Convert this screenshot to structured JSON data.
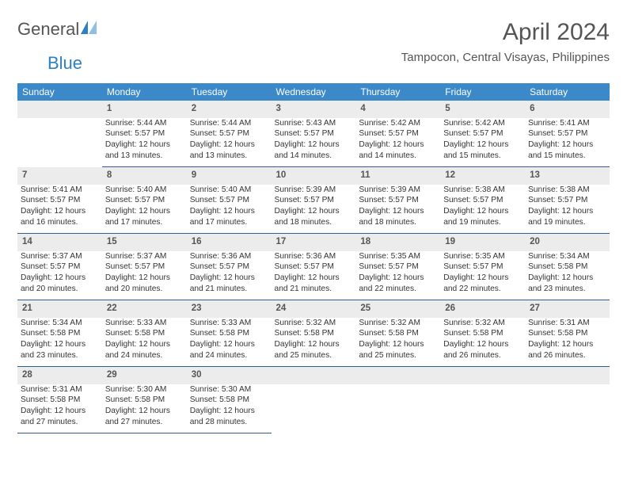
{
  "logo": {
    "general": "General",
    "blue": "Blue"
  },
  "header": {
    "title": "April 2024",
    "subtitle": "Tampocon, Central Visayas, Philippines"
  },
  "colors": {
    "header_bg": "#3b89c9",
    "header_fg": "#ffffff",
    "daynum_bg": "#ececec",
    "daynum_fg": "#555555",
    "cell_fg": "#333333",
    "row_border": "#2f5f8f",
    "title_fg": "#555555",
    "logo_blue": "#2f7fc3",
    "logo_gray": "#555555"
  },
  "typography": {
    "title_fontsize": 30,
    "subtitle_fontsize": 15,
    "weekday_fontsize": 12,
    "daynum_fontsize": 11.5,
    "cell_fontsize": 10.2
  },
  "weekdays": [
    "Sunday",
    "Monday",
    "Tuesday",
    "Wednesday",
    "Thursday",
    "Friday",
    "Saturday"
  ],
  "weeks": [
    [
      null,
      {
        "n": "1",
        "sr": "5:44 AM",
        "ss": "5:57 PM",
        "dl": "12 hours and 13 minutes."
      },
      {
        "n": "2",
        "sr": "5:44 AM",
        "ss": "5:57 PM",
        "dl": "12 hours and 13 minutes."
      },
      {
        "n": "3",
        "sr": "5:43 AM",
        "ss": "5:57 PM",
        "dl": "12 hours and 14 minutes."
      },
      {
        "n": "4",
        "sr": "5:42 AM",
        "ss": "5:57 PM",
        "dl": "12 hours and 14 minutes."
      },
      {
        "n": "5",
        "sr": "5:42 AM",
        "ss": "5:57 PM",
        "dl": "12 hours and 15 minutes."
      },
      {
        "n": "6",
        "sr": "5:41 AM",
        "ss": "5:57 PM",
        "dl": "12 hours and 15 minutes."
      }
    ],
    [
      {
        "n": "7",
        "sr": "5:41 AM",
        "ss": "5:57 PM",
        "dl": "12 hours and 16 minutes."
      },
      {
        "n": "8",
        "sr": "5:40 AM",
        "ss": "5:57 PM",
        "dl": "12 hours and 17 minutes."
      },
      {
        "n": "9",
        "sr": "5:40 AM",
        "ss": "5:57 PM",
        "dl": "12 hours and 17 minutes."
      },
      {
        "n": "10",
        "sr": "5:39 AM",
        "ss": "5:57 PM",
        "dl": "12 hours and 18 minutes."
      },
      {
        "n": "11",
        "sr": "5:39 AM",
        "ss": "5:57 PM",
        "dl": "12 hours and 18 minutes."
      },
      {
        "n": "12",
        "sr": "5:38 AM",
        "ss": "5:57 PM",
        "dl": "12 hours and 19 minutes."
      },
      {
        "n": "13",
        "sr": "5:38 AM",
        "ss": "5:57 PM",
        "dl": "12 hours and 19 minutes."
      }
    ],
    [
      {
        "n": "14",
        "sr": "5:37 AM",
        "ss": "5:57 PM",
        "dl": "12 hours and 20 minutes."
      },
      {
        "n": "15",
        "sr": "5:37 AM",
        "ss": "5:57 PM",
        "dl": "12 hours and 20 minutes."
      },
      {
        "n": "16",
        "sr": "5:36 AM",
        "ss": "5:57 PM",
        "dl": "12 hours and 21 minutes."
      },
      {
        "n": "17",
        "sr": "5:36 AM",
        "ss": "5:57 PM",
        "dl": "12 hours and 21 minutes."
      },
      {
        "n": "18",
        "sr": "5:35 AM",
        "ss": "5:57 PM",
        "dl": "12 hours and 22 minutes."
      },
      {
        "n": "19",
        "sr": "5:35 AM",
        "ss": "5:57 PM",
        "dl": "12 hours and 22 minutes."
      },
      {
        "n": "20",
        "sr": "5:34 AM",
        "ss": "5:58 PM",
        "dl": "12 hours and 23 minutes."
      }
    ],
    [
      {
        "n": "21",
        "sr": "5:34 AM",
        "ss": "5:58 PM",
        "dl": "12 hours and 23 minutes."
      },
      {
        "n": "22",
        "sr": "5:33 AM",
        "ss": "5:58 PM",
        "dl": "12 hours and 24 minutes."
      },
      {
        "n": "23",
        "sr": "5:33 AM",
        "ss": "5:58 PM",
        "dl": "12 hours and 24 minutes."
      },
      {
        "n": "24",
        "sr": "5:32 AM",
        "ss": "5:58 PM",
        "dl": "12 hours and 25 minutes."
      },
      {
        "n": "25",
        "sr": "5:32 AM",
        "ss": "5:58 PM",
        "dl": "12 hours and 25 minutes."
      },
      {
        "n": "26",
        "sr": "5:32 AM",
        "ss": "5:58 PM",
        "dl": "12 hours and 26 minutes."
      },
      {
        "n": "27",
        "sr": "5:31 AM",
        "ss": "5:58 PM",
        "dl": "12 hours and 26 minutes."
      }
    ],
    [
      {
        "n": "28",
        "sr": "5:31 AM",
        "ss": "5:58 PM",
        "dl": "12 hours and 27 minutes."
      },
      {
        "n": "29",
        "sr": "5:30 AM",
        "ss": "5:58 PM",
        "dl": "12 hours and 27 minutes."
      },
      {
        "n": "30",
        "sr": "5:30 AM",
        "ss": "5:58 PM",
        "dl": "12 hours and 28 minutes."
      },
      null,
      null,
      null,
      null
    ]
  ],
  "labels": {
    "sunrise": "Sunrise:",
    "sunset": "Sunset:",
    "daylight": "Daylight:"
  }
}
